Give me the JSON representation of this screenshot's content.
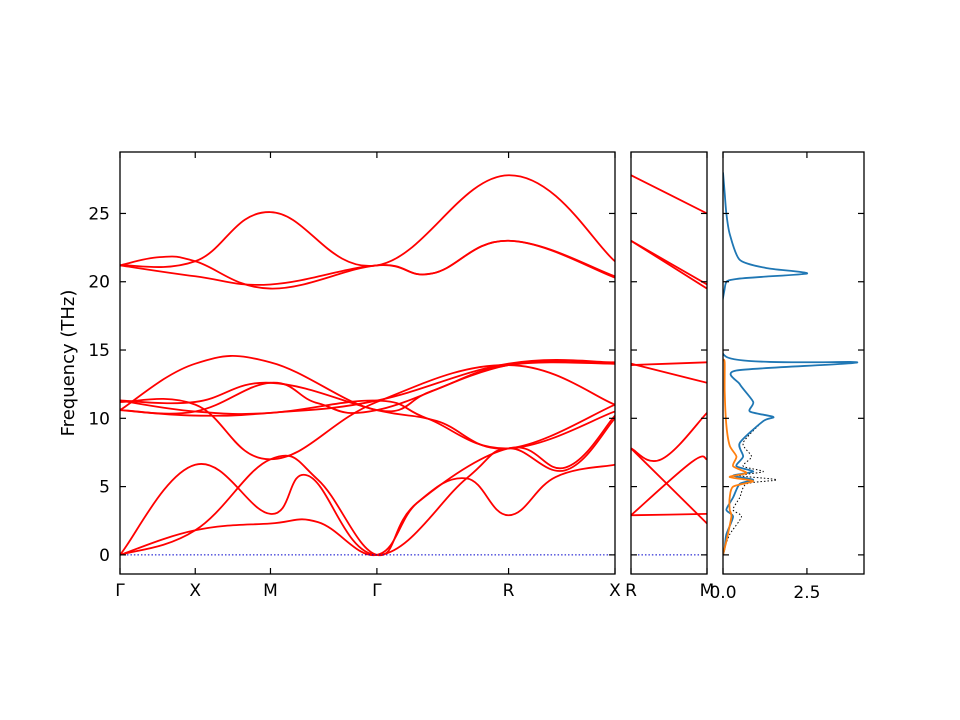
{
  "chart_data": [
    {
      "type": "line",
      "ylabel": "Frequency (THz)",
      "ylim": [
        -1.4,
        29.5
      ],
      "yticks": [
        0,
        5,
        10,
        15,
        20,
        25
      ],
      "path_ticks": [
        {
          "label": "Γ",
          "x": 0
        },
        {
          "label": "X",
          "x": 0.152
        },
        {
          "label": "M",
          "x": 0.304
        },
        {
          "label": "Γ",
          "x": 0.519
        },
        {
          "label": "R",
          "x": 0.785
        },
        {
          "label": "X",
          "x": 1.0
        }
      ],
      "series": [
        {
          "color": "#ff0000",
          "points": [
            [
              0,
              0
            ],
            [
              0.152,
              1.8
            ],
            [
              0.304,
              2.3
            ],
            [
              0.4,
              2.4
            ],
            [
              0.519,
              0
            ],
            [
              0.6,
              3.8
            ],
            [
              0.7,
              5.6
            ],
            [
              0.785,
              2.9
            ],
            [
              0.88,
              5.7
            ],
            [
              1.0,
              6.6
            ]
          ]
        },
        {
          "color": "#ff0000",
          "points": [
            [
              0,
              0
            ],
            [
              0.152,
              6.6
            ],
            [
              0.304,
              3.0
            ],
            [
              0.38,
              5.8
            ],
            [
              0.519,
              0
            ],
            [
              0.7,
              5.6
            ],
            [
              0.785,
              7.8
            ],
            [
              0.9,
              6.2
            ],
            [
              1.0,
              10.0
            ]
          ]
        },
        {
          "color": "#ff0000",
          "points": [
            [
              0,
              0
            ],
            [
              0.152,
              1.8
            ],
            [
              0.304,
              7.0
            ],
            [
              0.4,
              5.5
            ],
            [
              0.519,
              0
            ],
            [
              0.6,
              3.8
            ],
            [
              0.785,
              7.8
            ],
            [
              0.9,
              6.4
            ],
            [
              1.0,
              10.2
            ]
          ]
        },
        {
          "color": "#ff0000",
          "points": [
            [
              0,
              10.6
            ],
            [
              0.152,
              14.0
            ],
            [
              0.304,
              14.1
            ],
            [
              0.519,
              10.6
            ],
            [
              0.63,
              12.0
            ],
            [
              0.785,
              13.9
            ],
            [
              1.0,
              14.0
            ]
          ]
        },
        {
          "color": "#ff0000",
          "points": [
            [
              0,
              10.6
            ],
            [
              0.152,
              10.5
            ],
            [
              0.304,
              12.6
            ],
            [
              0.4,
              11.1
            ],
            [
              0.519,
              10.6
            ],
            [
              0.785,
              13.9
            ],
            [
              1.0,
              14.0
            ]
          ]
        },
        {
          "color": "#ff0000",
          "points": [
            [
              0,
              11.3
            ],
            [
              0.152,
              10.5
            ],
            [
              0.304,
              10.4
            ],
            [
              0.519,
              11.3
            ],
            [
              0.62,
              10.0
            ],
            [
              0.785,
              7.8
            ],
            [
              1.0,
              10.5
            ]
          ]
        },
        {
          "color": "#ff0000",
          "points": [
            [
              0,
              11.3
            ],
            [
              0.152,
              11.2
            ],
            [
              0.304,
              12.6
            ],
            [
              0.519,
              10.6
            ],
            [
              0.64,
              9.8
            ],
            [
              0.785,
              7.8
            ],
            [
              1.0,
              11.0
            ]
          ]
        },
        {
          "color": "#ff0000",
          "points": [
            [
              0,
              10.6
            ],
            [
              0.152,
              10.2
            ],
            [
              0.304,
              10.4
            ],
            [
              0.519,
              11.3
            ],
            [
              0.785,
              14.0
            ],
            [
              1.0,
              14.1
            ]
          ]
        },
        {
          "color": "#ff0000",
          "points": [
            [
              0,
              11.2
            ],
            [
              0.152,
              11.0
            ],
            [
              0.304,
              7.0
            ],
            [
              0.519,
              11.2
            ],
            [
              0.785,
              13.9
            ],
            [
              1.0,
              11.0
            ]
          ]
        },
        {
          "color": "#ff0000",
          "points": [
            [
              0,
              21.2
            ],
            [
              0.152,
              20.4
            ],
            [
              0.304,
              19.8
            ],
            [
              0.519,
              21.2
            ],
            [
              0.63,
              20.6
            ],
            [
              0.785,
              23.0
            ],
            [
              1.0,
              20.3
            ]
          ]
        },
        {
          "color": "#ff0000",
          "points": [
            [
              0,
              21.2
            ],
            [
              0.08,
              21.8
            ],
            [
              0.152,
              21.5
            ],
            [
              0.304,
              19.5
            ],
            [
              0.519,
              21.2
            ],
            [
              0.63,
              20.6
            ],
            [
              0.785,
              23.0
            ],
            [
              1.0,
              20.4
            ]
          ]
        },
        {
          "color": "#ff0000",
          "points": [
            [
              0,
              21.2
            ],
            [
              0.152,
              21.5
            ],
            [
              0.304,
              25.1
            ],
            [
              0.519,
              21.2
            ],
            [
              0.785,
              27.8
            ],
            [
              1.0,
              21.5
            ]
          ]
        },
        {
          "color": "#0000cc",
          "dotted": true,
          "points": [
            [
              0,
              0
            ],
            [
              1.0,
              0
            ]
          ]
        }
      ]
    },
    {
      "type": "line",
      "ylim": [
        -1.4,
        29.5
      ],
      "path_ticks": [
        {
          "label": "R",
          "x": 0
        },
        {
          "label": "M",
          "x": 1.0
        }
      ],
      "series": [
        {
          "color": "#ff0000",
          "points": [
            [
              0,
              2.9
            ],
            [
              1.0,
              3.0
            ]
          ]
        },
        {
          "color": "#ff0000",
          "points": [
            [
              0,
              2.9
            ],
            [
              0.8,
              6.8
            ],
            [
              1.0,
              7.0
            ]
          ]
        },
        {
          "color": "#ff0000",
          "points": [
            [
              0,
              7.8
            ],
            [
              1.0,
              2.3
            ]
          ]
        },
        {
          "color": "#ff0000",
          "points": [
            [
              0,
              7.8
            ],
            [
              0.4,
              7.0
            ],
            [
              1.0,
              10.4
            ]
          ]
        },
        {
          "color": "#ff0000",
          "points": [
            [
              0,
              13.9
            ],
            [
              1.0,
              14.1
            ]
          ]
        },
        {
          "color": "#ff0000",
          "points": [
            [
              0,
              14.0
            ],
            [
              1.0,
              12.6
            ]
          ]
        },
        {
          "color": "#ff0000",
          "points": [
            [
              0,
              23.0
            ],
            [
              1.0,
              19.5
            ]
          ]
        },
        {
          "color": "#ff0000",
          "points": [
            [
              0,
              23.0
            ],
            [
              1.0,
              19.8
            ]
          ]
        },
        {
          "color": "#ff0000",
          "points": [
            [
              0,
              27.8
            ],
            [
              1.0,
              25.0
            ]
          ]
        },
        {
          "color": "#0000cc",
          "dotted": true,
          "points": [
            [
              0,
              0
            ],
            [
              1.0,
              0
            ]
          ]
        }
      ]
    },
    {
      "type": "line",
      "xlim": [
        0,
        4.2
      ],
      "ylim": [
        -1.4,
        29.5
      ],
      "xticks": [
        {
          "label": "0.0",
          "value": 0
        },
        {
          "label": "2.5",
          "value": 2.5
        }
      ],
      "series": [
        {
          "color": "#000000",
          "dotted": true,
          "points": [
            [
              0,
              0
            ],
            [
              0.05,
              0.5
            ],
            [
              0.2,
              1.5
            ],
            [
              0.55,
              2.8
            ],
            [
              0.3,
              3.3
            ],
            [
              0.5,
              4.2
            ],
            [
              0.7,
              5.2
            ],
            [
              1.6,
              5.5
            ],
            [
              0.5,
              5.8
            ],
            [
              1.2,
              6.1
            ],
            [
              0.6,
              6.5
            ],
            [
              0.85,
              7.2
            ],
            [
              0.6,
              8.2
            ],
            [
              1.2,
              9.8
            ],
            [
              1.5,
              10.1
            ],
            [
              0.8,
              10.5
            ],
            [
              0.9,
              11.2
            ],
            [
              0.5,
              12.5
            ],
            [
              0.4,
              13.5
            ],
            [
              4.0,
              14.1
            ],
            [
              0.1,
              14.5
            ],
            [
              0.05,
              19.5
            ],
            [
              0.4,
              20.2
            ],
            [
              2.5,
              20.6
            ],
            [
              1.3,
              21.0
            ],
            [
              0.5,
              21.6
            ],
            [
              0.2,
              23.5
            ],
            [
              0.1,
              25.0
            ],
            [
              0.05,
              26.5
            ],
            [
              0.0,
              28.0
            ]
          ]
        },
        {
          "color": "#1f77b4",
          "points": [
            [
              0,
              0
            ],
            [
              0.05,
              0.5
            ],
            [
              0.1,
              1.5
            ],
            [
              0.3,
              2.8
            ],
            [
              0.1,
              3.3
            ],
            [
              0.3,
              4.2
            ],
            [
              0.5,
              5.2
            ],
            [
              0.9,
              5.5
            ],
            [
              0.3,
              5.8
            ],
            [
              0.9,
              6.1
            ],
            [
              0.4,
              6.5
            ],
            [
              0.6,
              7.2
            ],
            [
              0.5,
              8.2
            ],
            [
              1.2,
              9.8
            ],
            [
              1.5,
              10.1
            ],
            [
              0.8,
              10.5
            ],
            [
              0.9,
              11.2
            ],
            [
              0.5,
              12.5
            ],
            [
              0.4,
              13.5
            ],
            [
              4.0,
              14.1
            ],
            [
              0.1,
              14.5
            ],
            [
              0.05,
              19.5
            ],
            [
              0.4,
              20.2
            ],
            [
              2.5,
              20.6
            ],
            [
              1.3,
              21.0
            ],
            [
              0.5,
              21.6
            ],
            [
              0.2,
              23.5
            ],
            [
              0.1,
              25.0
            ],
            [
              0.05,
              26.5
            ],
            [
              0.0,
              28.0
            ]
          ]
        },
        {
          "color": "#ff7f0e",
          "points": [
            [
              0,
              0
            ],
            [
              0.1,
              1.0
            ],
            [
              0.25,
              2.8
            ],
            [
              0.2,
              3.3
            ],
            [
              0.2,
              4.2
            ],
            [
              0.3,
              5.0
            ],
            [
              0.9,
              5.4
            ],
            [
              0.2,
              5.7
            ],
            [
              0.7,
              6.0
            ],
            [
              0.3,
              6.5
            ],
            [
              0.4,
              7.2
            ],
            [
              0.2,
              8.0
            ],
            [
              0.1,
              9.5
            ],
            [
              0.05,
              12.0
            ],
            [
              0.05,
              14.1
            ],
            [
              0.0,
              14.3
            ]
          ]
        }
      ]
    }
  ]
}
